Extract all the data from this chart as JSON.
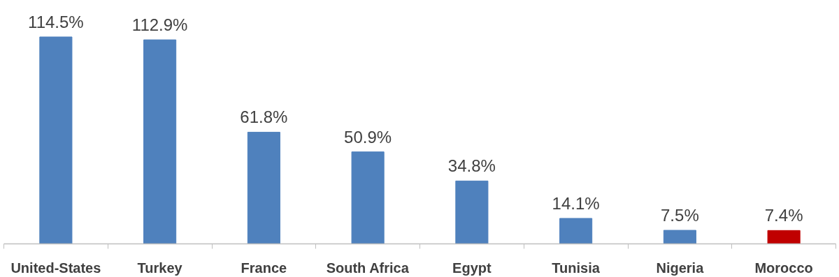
{
  "chart_data": {
    "type": "bar",
    "categories": [
      "United-States",
      "Turkey",
      "France",
      "South Africa",
      "Egypt",
      "Tunisia",
      "Nigeria",
      "Morocco"
    ],
    "values": [
      114.5,
      112.9,
      61.8,
      50.9,
      34.8,
      14.1,
      7.5,
      7.4
    ],
    "colors": [
      "#4f81bd",
      "#4f81bd",
      "#4f81bd",
      "#4f81bd",
      "#4f81bd",
      "#4f81bd",
      "#4f81bd",
      "#c00000"
    ],
    "value_labels": [
      "114.5%",
      "112.9%",
      "61.8%",
      "50.9%",
      "34.8%",
      "14.1%",
      "7.5%",
      "7.4%"
    ]
  }
}
